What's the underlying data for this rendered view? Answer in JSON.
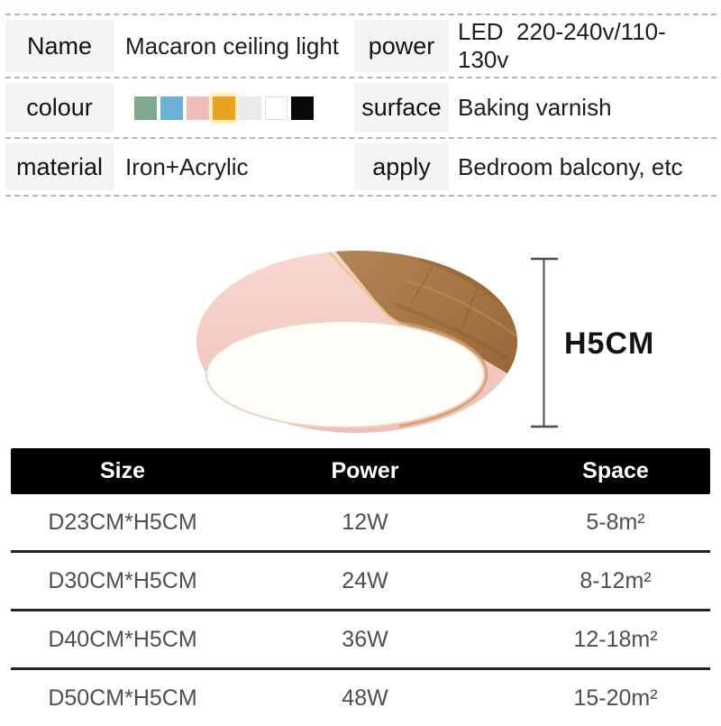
{
  "spec_table": {
    "rows": [
      {
        "left_label": "Name",
        "left_value": "Macaron ceiling light",
        "right_label": "power",
        "right_value": "LED  220-240v/110-130v"
      },
      {
        "left_label": "colour",
        "right_label": "surface",
        "right_value": "Baking varnish"
      },
      {
        "left_label": "material",
        "left_value": "Iron+Acrylic",
        "right_label": "apply",
        "right_value": "Bedroom balcony, etc"
      }
    ],
    "swatches": [
      "#7fa98c",
      "#6cb0d8",
      "#f0bcb9",
      "#e7a41f",
      "#eaeaea",
      "#ffffff",
      "#0a0a0a"
    ],
    "label_cell_bg": "#f4f4f4",
    "dashed_line_color": "#b5b5b5"
  },
  "diagram": {
    "height_label": "H5CM",
    "dimension_line_color": "#4d4d4d",
    "lamp_colors": {
      "pink": "#f3cac2",
      "pink_light": "#f8d8d1",
      "wood": "#a97b49",
      "wood_dark": "#8c5c32",
      "lens": "#fffdf8",
      "seam_gold": "#f0c493"
    }
  },
  "size_table": {
    "headers": [
      "Size",
      "Power",
      "Space"
    ],
    "rows": [
      [
        "D23CM*H5CM",
        "12W",
        "5-8m²"
      ],
      [
        "D30CM*H5CM",
        "24W",
        "8-12m²"
      ],
      [
        "D40CM*H5CM",
        "36W",
        "12-18m²"
      ],
      [
        "D50CM*H5CM",
        "48W",
        "15-20m²"
      ]
    ],
    "header_bg": "#000000",
    "header_text_color": "#ffffff",
    "row_text_color": "#4f4f4f",
    "separator_color": "#242424"
  }
}
